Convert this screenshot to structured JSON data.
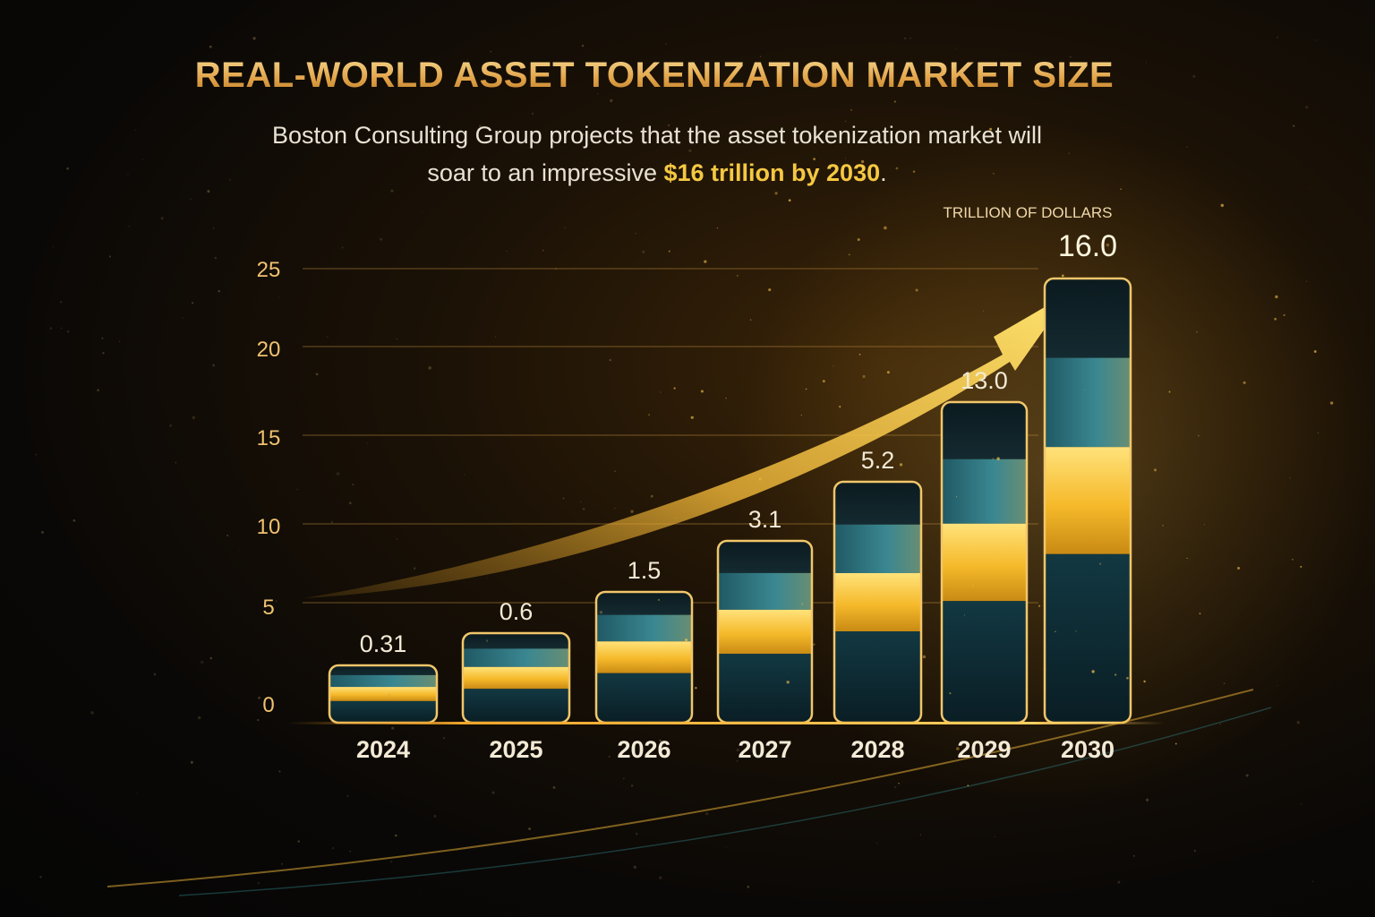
{
  "header": {
    "title": "REAL-WORLD ASSET TOKENIZATION MARKET SIZE",
    "subtitle_line1": "Boston Consulting Group projects that the asset tokenization market will",
    "subtitle_line2_prefix": "soar to an impressive ",
    "subtitle_line2_highlight": "$16 trillion by 2030",
    "subtitle_line2_suffix": "."
  },
  "chart_data": {
    "type": "bar",
    "unit_label": "TRILLION OF DOLLARS",
    "categories": [
      "2024",
      "2025",
      "2026",
      "2027",
      "2028",
      "2029",
      "2030"
    ],
    "values": [
      0.31,
      0.6,
      1.5,
      3.1,
      5.2,
      13.0,
      16.0
    ],
    "value_labels": [
      "0.31",
      "0.6",
      "1.5",
      "3.1",
      "5.2",
      "13.0",
      "16.0"
    ],
    "yticks": [
      0,
      5,
      10,
      15,
      20,
      25
    ],
    "ylim": [
      0,
      25
    ],
    "grid": true,
    "trend_arrow": true,
    "colors": {
      "gold": "#f5c23a",
      "teal": "#2e7480",
      "dark_teal": "#0f2a32",
      "frame": "#f2c66a"
    }
  }
}
